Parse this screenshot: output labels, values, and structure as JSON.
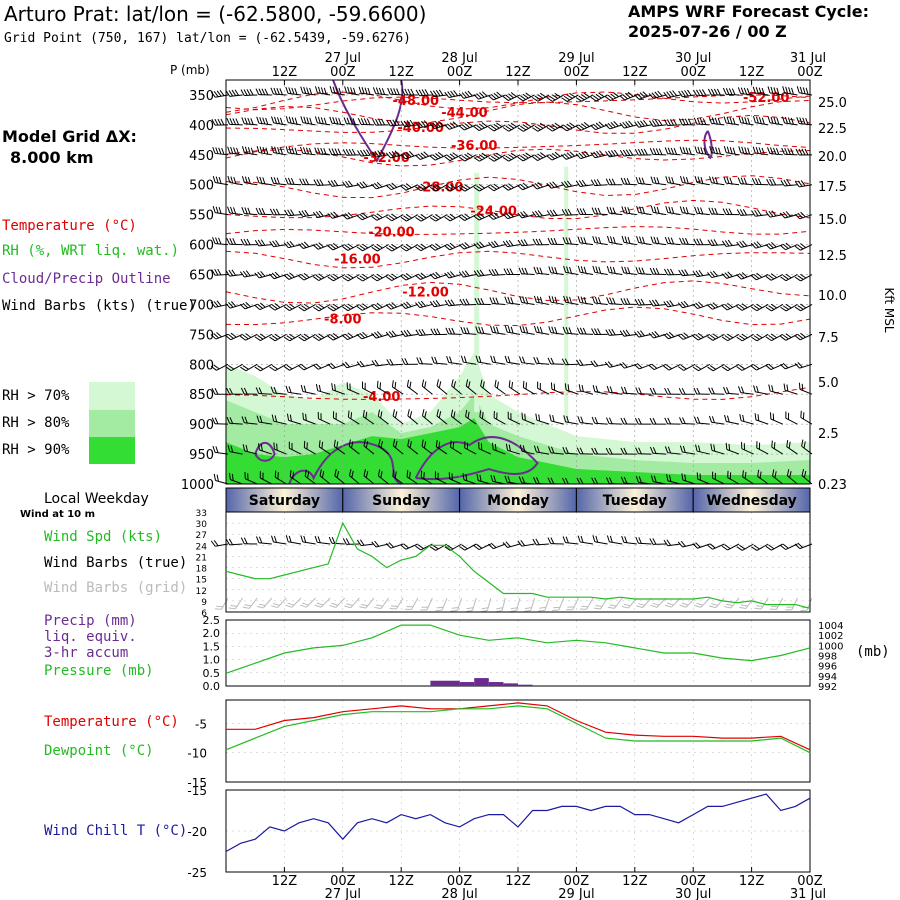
{
  "header": {
    "title": "Arturo Prat:  lat/lon = (-62.5800, -59.6600)",
    "subtitle": "Grid Point (750, 167) lat/lon = (-62.5439, -59.6276)",
    "cycle_line1": "AMPS WRF Forecast Cycle:",
    "cycle_line2": "2025-07-26 / 00  Z"
  },
  "model_grid": {
    "label": "Model Grid ΔX:",
    "value": "8.000 km"
  },
  "colors": {
    "temperature": "#e00000",
    "rh": "#22bb22",
    "cloud": "#6a2c91",
    "wind": "#000000",
    "wind_grid": "#bbbbbb",
    "wind_chill": "#1a1aa0",
    "rh70": "#d4f7d4",
    "rh80": "#a3eaa3",
    "rh90": "#33dd33"
  },
  "legend": {
    "temperature": "Temperature (°C)",
    "rh": "RH (%, WRT liq. wat.)",
    "cloud": "Cloud/Precip Outline",
    "wind": "Wind Barbs (kts) (true)",
    "rh70": "RH > 70%",
    "rh80": "RH > 80%",
    "rh90": "RH > 90%"
  },
  "time_axis": {
    "hour_labels": [
      "12Z",
      "00Z",
      "12Z",
      "00Z",
      "12Z",
      "00Z",
      "12Z",
      "00Z",
      "12Z",
      "00Z"
    ],
    "date_labels": [
      "27 Jul",
      "28 Jul",
      "29 Jul",
      "30 Jul",
      "31 Jul"
    ]
  },
  "weekday": {
    "title": "Local Weekday",
    "days": [
      "Saturday",
      "Sunday",
      "Monday",
      "Tuesday",
      "Wednesday"
    ]
  },
  "wind_panel": {
    "note": "Wind at 10 m",
    "speed_label": "Wind Spd (kts)",
    "barbs_true_label": "Wind Barbs (true)",
    "barbs_grid_label": "Wind Barbs (grid)"
  },
  "precip_panel": {
    "line1": "Precip (mm)",
    "line2": "liq. equiv.",
    "line3": "3-hr accum",
    "pressure_label": "Pressure (mb)",
    "right_unit": "(mb)"
  },
  "temp_panel": {
    "temperature_label": "Temperature (°C)",
    "dewpoint_label": "Dewpoint (°C)"
  },
  "chill_panel": {
    "label": "Wind Chill T (°C)"
  },
  "chart_data": [
    {
      "type": "heatmap",
      "panel": "cross_section",
      "y_axis_label": "P (mb)",
      "right_axis_label": "Kft MSL",
      "pressure_levels": [
        350,
        400,
        450,
        500,
        550,
        600,
        650,
        700,
        750,
        800,
        850,
        900,
        950,
        1000
      ],
      "height_ticks": [
        "25.0",
        "22.5",
        "20.0",
        "17.5",
        "15.0",
        "12.5",
        "10.0",
        "7.5",
        "5.0",
        "2.5",
        "0.23"
      ],
      "temperature_contours": [
        {
          "label": "-52.00",
          "hour": 111,
          "p": 355
        },
        {
          "label": "-48.00",
          "hour": 39,
          "p": 360
        },
        {
          "label": "-44.00",
          "hour": 49,
          "p": 380
        },
        {
          "label": "-40.00",
          "hour": 40,
          "p": 405
        },
        {
          "label": "-36.00",
          "hour": 51,
          "p": 435
        },
        {
          "label": "-32.00",
          "hour": 33,
          "p": 455
        },
        {
          "label": "-28.00",
          "hour": 44,
          "p": 505
        },
        {
          "label": "-24.00",
          "hour": 55,
          "p": 545
        },
        {
          "label": "-20.00",
          "hour": 34,
          "p": 580
        },
        {
          "label": "-16.00",
          "hour": 27,
          "p": 625
        },
        {
          "label": "-12.00",
          "hour": 41,
          "p": 680
        },
        {
          "label": "-8.00",
          "hour": 24,
          "p": 725
        },
        {
          "label": "-4.00",
          "hour": 32,
          "p": 855
        }
      ]
    },
    {
      "type": "line",
      "panel": "wind_speed",
      "y_ticks": [
        6,
        9,
        12,
        15,
        18,
        21,
        24,
        27,
        30,
        33
      ],
      "ylim": [
        6,
        33
      ],
      "x": [
        0,
        3,
        6,
        9,
        12,
        15,
        18,
        21,
        24,
        27,
        30,
        33,
        36,
        39,
        42,
        45,
        48,
        51,
        54,
        57,
        60,
        63,
        66,
        69,
        72,
        75,
        78,
        81,
        84,
        87,
        90,
        93,
        96,
        99,
        102,
        105,
        108,
        111,
        114,
        117,
        120
      ],
      "values": [
        17,
        16,
        15,
        15,
        16,
        17,
        18,
        19,
        30,
        23,
        21,
        18,
        20,
        21,
        24,
        24,
        21,
        17,
        14,
        11,
        11,
        11,
        10,
        10,
        10,
        10,
        9.5,
        10,
        9.5,
        9.5,
        9.5,
        9.5,
        9.5,
        10,
        9,
        8.5,
        9,
        8,
        8,
        8,
        7
      ]
    },
    {
      "type": "line",
      "panel": "pressure",
      "y_ticks": [
        992,
        994,
        996,
        998,
        1000,
        1002,
        1004
      ],
      "ylim": [
        992,
        1005
      ],
      "x": [
        0,
        6,
        12,
        18,
        24,
        30,
        36,
        42,
        48,
        54,
        60,
        66,
        72,
        78,
        84,
        90,
        96,
        102,
        108,
        114,
        120
      ],
      "values": [
        994.5,
        996.5,
        998.5,
        999.5,
        1000,
        1001.5,
        1004,
        1004,
        1002,
        1001,
        1001.5,
        1000.5,
        1001,
        1000.5,
        999.5,
        998.5,
        998.5,
        997.5,
        997,
        998,
        999.5
      ]
    },
    {
      "type": "bar",
      "panel": "precip",
      "y_ticks": [
        0.0,
        0.5,
        1.0,
        1.5,
        2.0,
        2.5
      ],
      "ylim": [
        0,
        2.5
      ],
      "x": [
        42,
        45,
        48,
        51,
        54,
        57,
        60
      ],
      "values": [
        0.2,
        0.2,
        0.15,
        0.3,
        0.15,
        0.1,
        0.05
      ]
    },
    {
      "type": "line",
      "panel": "temperature",
      "y_ticks": [
        -5,
        -10,
        -15
      ],
      "ylim": [
        -15,
        -1
      ],
      "series": [
        {
          "name": "Temperature",
          "x": [
            0,
            6,
            12,
            18,
            24,
            30,
            36,
            42,
            48,
            54,
            60,
            66,
            72,
            78,
            84,
            90,
            96,
            102,
            108,
            114,
            120
          ],
          "values": [
            -6,
            -6,
            -4.5,
            -4,
            -3,
            -2.5,
            -2,
            -2.5,
            -2.5,
            -2,
            -1.5,
            -2,
            -4.5,
            -6.5,
            -7,
            -7.2,
            -7.2,
            -7.5,
            -7.5,
            -7.2,
            -9.5
          ]
        },
        {
          "name": "Dewpoint",
          "x": [
            0,
            6,
            12,
            18,
            24,
            30,
            36,
            42,
            48,
            54,
            60,
            66,
            72,
            78,
            84,
            90,
            96,
            102,
            108,
            114,
            120
          ],
          "values": [
            -9.5,
            -7.5,
            -5.5,
            -4.5,
            -3.5,
            -3,
            -3,
            -3,
            -2.5,
            -2.5,
            -2,
            -2.5,
            -5,
            -7.5,
            -8,
            -8,
            -8,
            -8,
            -8,
            -7.5,
            -10
          ]
        }
      ]
    },
    {
      "type": "line",
      "panel": "wind_chill",
      "y_ticks": [
        -15,
        -20,
        -25
      ],
      "ylim": [
        -25,
        -15
      ],
      "x": [
        0,
        3,
        6,
        9,
        12,
        15,
        18,
        21,
        24,
        27,
        30,
        33,
        36,
        39,
        42,
        45,
        48,
        51,
        54,
        57,
        60,
        63,
        66,
        69,
        72,
        75,
        78,
        81,
        84,
        87,
        90,
        93,
        96,
        99,
        102,
        105,
        108,
        111,
        114,
        117,
        120
      ],
      "values": [
        -22.5,
        -21.5,
        -21,
        -19.5,
        -20,
        -19,
        -18.5,
        -19,
        -21,
        -19,
        -18.5,
        -19,
        -18,
        -18.5,
        -18,
        -19,
        -19.5,
        -18.5,
        -18,
        -18,
        -19.5,
        -17.5,
        -17.5,
        -17,
        -17,
        -17.5,
        -17,
        -17,
        -18,
        -18,
        -18.5,
        -19,
        -18,
        -17,
        -17,
        -16.5,
        -16,
        -15.5,
        -17.5,
        -17,
        -16
      ]
    }
  ]
}
